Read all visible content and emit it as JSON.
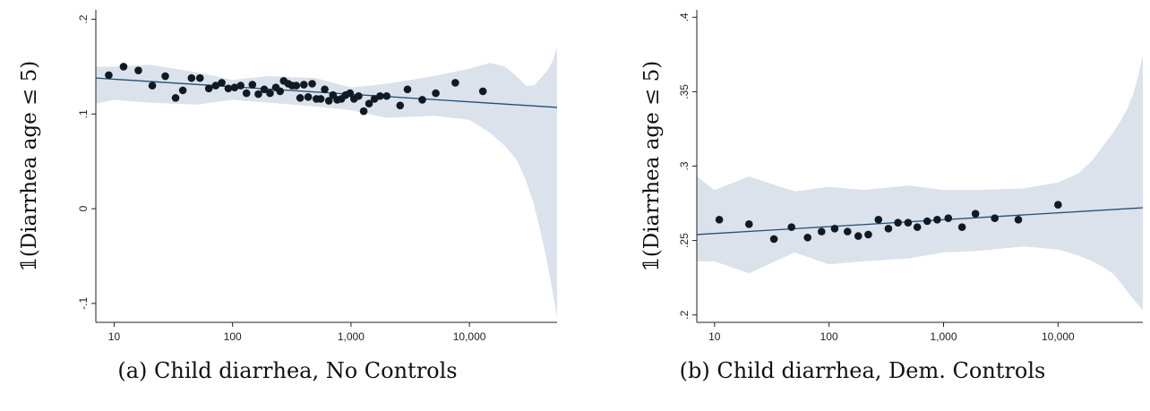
{
  "chart_data": [
    {
      "type": "scatter",
      "caption": "(a) Child diarrhea, No Controls",
      "ylabel": "𝟙(Diarrhea age ≤ 5)",
      "xscale": "log",
      "xlim": [
        7,
        55000
      ],
      "ylim": [
        -0.12,
        0.21
      ],
      "xticks": [
        10,
        100,
        1000,
        10000
      ],
      "xtick_labels": [
        "10",
        "100",
        "1,000",
        "10,000"
      ],
      "yticks": [
        0.2,
        0.1,
        0,
        -0.1
      ],
      "ytick_labels": [
        ".2",
        ".1",
        "0",
        "-.1"
      ],
      "fit_line": {
        "x": [
          7,
          55000
        ],
        "y": [
          0.138,
          0.107
        ]
      },
      "ci_band": {
        "x": [
          7,
          10,
          20,
          50,
          100,
          200,
          500,
          1000,
          2000,
          5000,
          10000,
          15000,
          20000,
          25000,
          30000,
          35000,
          40000,
          45000,
          50000,
          55000
        ],
        "upper": [
          0.15,
          0.15,
          0.152,
          0.144,
          0.136,
          0.14,
          0.138,
          0.128,
          0.132,
          0.14,
          0.148,
          0.154,
          0.15,
          0.14,
          0.13,
          0.13,
          0.138,
          0.145,
          0.155,
          0.17
        ],
        "lower": [
          0.111,
          0.115,
          0.112,
          0.11,
          0.115,
          0.112,
          0.108,
          0.104,
          0.096,
          0.098,
          0.094,
          0.08,
          0.066,
          0.052,
          0.03,
          0.005,
          -0.025,
          -0.055,
          -0.085,
          -0.115
        ]
      },
      "grid": false,
      "points": [
        {
          "x": 9,
          "y": 0.141
        },
        {
          "x": 12,
          "y": 0.15
        },
        {
          "x": 16,
          "y": 0.146
        },
        {
          "x": 21,
          "y": 0.13
        },
        {
          "x": 27,
          "y": 0.14
        },
        {
          "x": 33,
          "y": 0.117
        },
        {
          "x": 38,
          "y": 0.125
        },
        {
          "x": 45,
          "y": 0.138
        },
        {
          "x": 53,
          "y": 0.138
        },
        {
          "x": 63,
          "y": 0.127
        },
        {
          "x": 72,
          "y": 0.13
        },
        {
          "x": 81,
          "y": 0.133
        },
        {
          "x": 92,
          "y": 0.127
        },
        {
          "x": 104,
          "y": 0.128
        },
        {
          "x": 117,
          "y": 0.13
        },
        {
          "x": 131,
          "y": 0.122
        },
        {
          "x": 147,
          "y": 0.131
        },
        {
          "x": 165,
          "y": 0.121
        },
        {
          "x": 185,
          "y": 0.126
        },
        {
          "x": 207,
          "y": 0.122
        },
        {
          "x": 232,
          "y": 0.128
        },
        {
          "x": 252,
          "y": 0.124
        },
        {
          "x": 270,
          "y": 0.135
        },
        {
          "x": 295,
          "y": 0.132
        },
        {
          "x": 318,
          "y": 0.13
        },
        {
          "x": 345,
          "y": 0.13
        },
        {
          "x": 372,
          "y": 0.117
        },
        {
          "x": 400,
          "y": 0.131
        },
        {
          "x": 435,
          "y": 0.118
        },
        {
          "x": 470,
          "y": 0.132
        },
        {
          "x": 510,
          "y": 0.116
        },
        {
          "x": 555,
          "y": 0.116
        },
        {
          "x": 600,
          "y": 0.126
        },
        {
          "x": 650,
          "y": 0.114
        },
        {
          "x": 705,
          "y": 0.12
        },
        {
          "x": 765,
          "y": 0.115
        },
        {
          "x": 830,
          "y": 0.116
        },
        {
          "x": 900,
          "y": 0.12
        },
        {
          "x": 980,
          "y": 0.122
        },
        {
          "x": 1060,
          "y": 0.116
        },
        {
          "x": 1160,
          "y": 0.119
        },
        {
          "x": 1280,
          "y": 0.103
        },
        {
          "x": 1420,
          "y": 0.111
        },
        {
          "x": 1580,
          "y": 0.116
        },
        {
          "x": 1760,
          "y": 0.119
        },
        {
          "x": 2000,
          "y": 0.119
        },
        {
          "x": 2600,
          "y": 0.109
        },
        {
          "x": 3000,
          "y": 0.126
        },
        {
          "x": 4000,
          "y": 0.115
        },
        {
          "x": 5200,
          "y": 0.122
        },
        {
          "x": 7600,
          "y": 0.133
        },
        {
          "x": 13000,
          "y": 0.124
        }
      ]
    },
    {
      "type": "scatter",
      "caption": "(b) Child diarrhea, Dem. Controls",
      "ylabel": "𝟙(Diarrhea age ≤ 5)",
      "xscale": "log",
      "xlim": [
        7,
        55000
      ],
      "ylim": [
        0.195,
        0.405
      ],
      "xticks": [
        10,
        100,
        1000,
        10000
      ],
      "xtick_labels": [
        "10",
        "100",
        "1,000",
        "10,000"
      ],
      "yticks": [
        0.4,
        0.35,
        0.3,
        0.25,
        0.2
      ],
      "ytick_labels": [
        ".4",
        ".35",
        ".3",
        ".25",
        ".2"
      ],
      "fit_line": {
        "x": [
          7,
          55000
        ],
        "y": [
          0.254,
          0.272
        ]
      },
      "ci_band": {
        "x": [
          7,
          10,
          20,
          50,
          100,
          200,
          500,
          1000,
          2000,
          5000,
          10000,
          15000,
          20000,
          25000,
          30000,
          35000,
          40000,
          45000,
          50000,
          55000
        ],
        "upper": [
          0.293,
          0.284,
          0.293,
          0.283,
          0.286,
          0.284,
          0.287,
          0.284,
          0.284,
          0.285,
          0.289,
          0.295,
          0.304,
          0.314,
          0.322,
          0.33,
          0.338,
          0.348,
          0.36,
          0.375
        ],
        "lower": [
          0.236,
          0.236,
          0.228,
          0.242,
          0.234,
          0.236,
          0.238,
          0.242,
          0.243,
          0.246,
          0.244,
          0.24,
          0.236,
          0.232,
          0.228,
          0.222,
          0.216,
          0.211,
          0.207,
          0.203
        ]
      },
      "grid": false,
      "points": [
        {
          "x": 11,
          "y": 0.264
        },
        {
          "x": 20,
          "y": 0.261
        },
        {
          "x": 33,
          "y": 0.251
        },
        {
          "x": 47,
          "y": 0.259
        },
        {
          "x": 65,
          "y": 0.252
        },
        {
          "x": 86,
          "y": 0.256
        },
        {
          "x": 112,
          "y": 0.258
        },
        {
          "x": 145,
          "y": 0.256
        },
        {
          "x": 180,
          "y": 0.253
        },
        {
          "x": 220,
          "y": 0.254
        },
        {
          "x": 270,
          "y": 0.264
        },
        {
          "x": 330,
          "y": 0.258
        },
        {
          "x": 400,
          "y": 0.262
        },
        {
          "x": 490,
          "y": 0.262
        },
        {
          "x": 590,
          "y": 0.259
        },
        {
          "x": 720,
          "y": 0.263
        },
        {
          "x": 880,
          "y": 0.264
        },
        {
          "x": 1100,
          "y": 0.265
        },
        {
          "x": 1450,
          "y": 0.259
        },
        {
          "x": 1900,
          "y": 0.268
        },
        {
          "x": 2800,
          "y": 0.265
        },
        {
          "x": 4500,
          "y": 0.264
        },
        {
          "x": 10000,
          "y": 0.274
        }
      ]
    }
  ]
}
